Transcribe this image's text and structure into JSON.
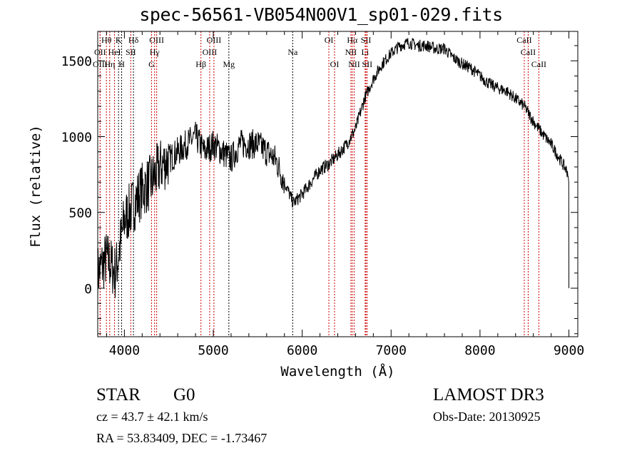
{
  "chart_data": {
    "type": "line",
    "title": "spec-56561-VB054N00V1_sp01-029.fits",
    "xlabel": "Wavelength (Å)",
    "ylabel": "Flux (relative)",
    "xlim": [
      3700,
      9100
    ],
    "ylim": [
      -320,
      1694
    ],
    "xticks": [
      4000,
      5000,
      6000,
      7000,
      8000,
      9000
    ],
    "yticks": [
      0,
      500,
      1000,
      1500
    ],
    "grid": false,
    "series": [
      {
        "name": "spectrum",
        "x": [
          3700,
          3800,
          3900,
          4000,
          4100,
          4200,
          4300,
          4400,
          4500,
          4600,
          4700,
          4800,
          4900,
          5000,
          5100,
          5200,
          5300,
          5400,
          5500,
          5600,
          5700,
          5800,
          5900,
          6000,
          6100,
          6200,
          6300,
          6400,
          6500,
          6600,
          6700,
          6800,
          6900,
          7000,
          7100,
          7200,
          7300,
          7400,
          7500,
          7600,
          7700,
          7800,
          7900,
          8000,
          8100,
          8200,
          8300,
          8400,
          8500,
          8600,
          8700,
          8800,
          8900,
          9000
        ],
        "y": [
          100,
          200,
          100,
          450,
          550,
          650,
          700,
          800,
          850,
          900,
          950,
          1000,
          900,
          950,
          900,
          850,
          950,
          950,
          950,
          900,
          850,
          700,
          560,
          620,
          700,
          780,
          820,
          880,
          950,
          1050,
          1250,
          1380,
          1480,
          1550,
          1600,
          1620,
          1600,
          1600,
          1580,
          1580,
          1520,
          1480,
          1450,
          1400,
          1350,
          1320,
          1300,
          1250,
          1200,
          1100,
          1020,
          950,
          850,
          750
        ]
      }
    ],
    "lines": [
      {
        "label": "Hθ",
        "wave": 3798,
        "row": 0,
        "color": "#cc0000"
      },
      {
        "label": "K",
        "wave": 3934,
        "row": 0,
        "color": "#000000"
      },
      {
        "label": "Hδ",
        "wave": 4102,
        "row": 0,
        "color": "#000000"
      },
      {
        "label": "OIII",
        "wave": 4363,
        "row": 0,
        "color": "#cc0000"
      },
      {
        "label": "OIII",
        "wave": 5007,
        "row": 0,
        "color": "#cc0000"
      },
      {
        "label": "OI",
        "wave": 6300,
        "row": 0,
        "color": "#cc0000"
      },
      {
        "label": "Hα",
        "wave": 6563,
        "row": 0,
        "color": "#cc0000"
      },
      {
        "label": "SII",
        "wave": 6717,
        "row": 0,
        "color": "#cc0000"
      },
      {
        "label": "CaII",
        "wave": 8498,
        "row": 0,
        "color": "#cc0000"
      },
      {
        "label": "OII",
        "wave": 3727,
        "row": 1,
        "color": "#cc0000"
      },
      {
        "label": "HeI",
        "wave": 3889,
        "row": 1,
        "color": "#cc0000"
      },
      {
        "label": "SII",
        "wave": 4072,
        "row": 1,
        "color": "#cc0000"
      },
      {
        "label": "Hγ",
        "wave": 4340,
        "row": 1,
        "color": "#cc0000"
      },
      {
        "label": "OIII",
        "wave": 4959,
        "row": 1,
        "color": "#cc0000"
      },
      {
        "label": "Na",
        "wave": 5893,
        "row": 1,
        "color": "#000000"
      },
      {
        "label": "NII",
        "wave": 6548,
        "row": 1,
        "color": "#cc0000"
      },
      {
        "label": "Li",
        "wave": 6708,
        "row": 1,
        "color": "#cc0000"
      },
      {
        "label": "CaII",
        "wave": 8542,
        "row": 1,
        "color": "#cc0000"
      },
      {
        "label": "OIII",
        "wave": 3727,
        "row": 2,
        "color": "#cc0000"
      },
      {
        "label": "Hη",
        "wave": 3835,
        "row": 2,
        "color": "#cc0000"
      },
      {
        "label": "H",
        "wave": 3969,
        "row": 2,
        "color": "#000000"
      },
      {
        "label": "G",
        "wave": 4305,
        "row": 2,
        "color": "#cc0000"
      },
      {
        "label": "Hβ",
        "wave": 4861,
        "row": 2,
        "color": "#cc0000"
      },
      {
        "label": "Mg",
        "wave": 5175,
        "row": 2,
        "color": "#000000"
      },
      {
        "label": "OI",
        "wave": 6364,
        "row": 2,
        "color": "#cc0000"
      },
      {
        "label": "NII",
        "wave": 6584,
        "row": 2,
        "color": "#cc0000"
      },
      {
        "label": "SII",
        "wave": 6731,
        "row": 2,
        "color": "#cc0000"
      },
      {
        "label": "CaII",
        "wave": 8662,
        "row": 2,
        "color": "#cc0000"
      }
    ]
  },
  "info": {
    "object_class": "STAR",
    "subclass": "G0",
    "survey": "LAMOST DR3",
    "cz": "cz = 43.7 ± 42.1 km/s",
    "obs_date": "Obs-Date: 20130925",
    "coords": "RA =  53.83409, DEC =  -1.73467"
  }
}
